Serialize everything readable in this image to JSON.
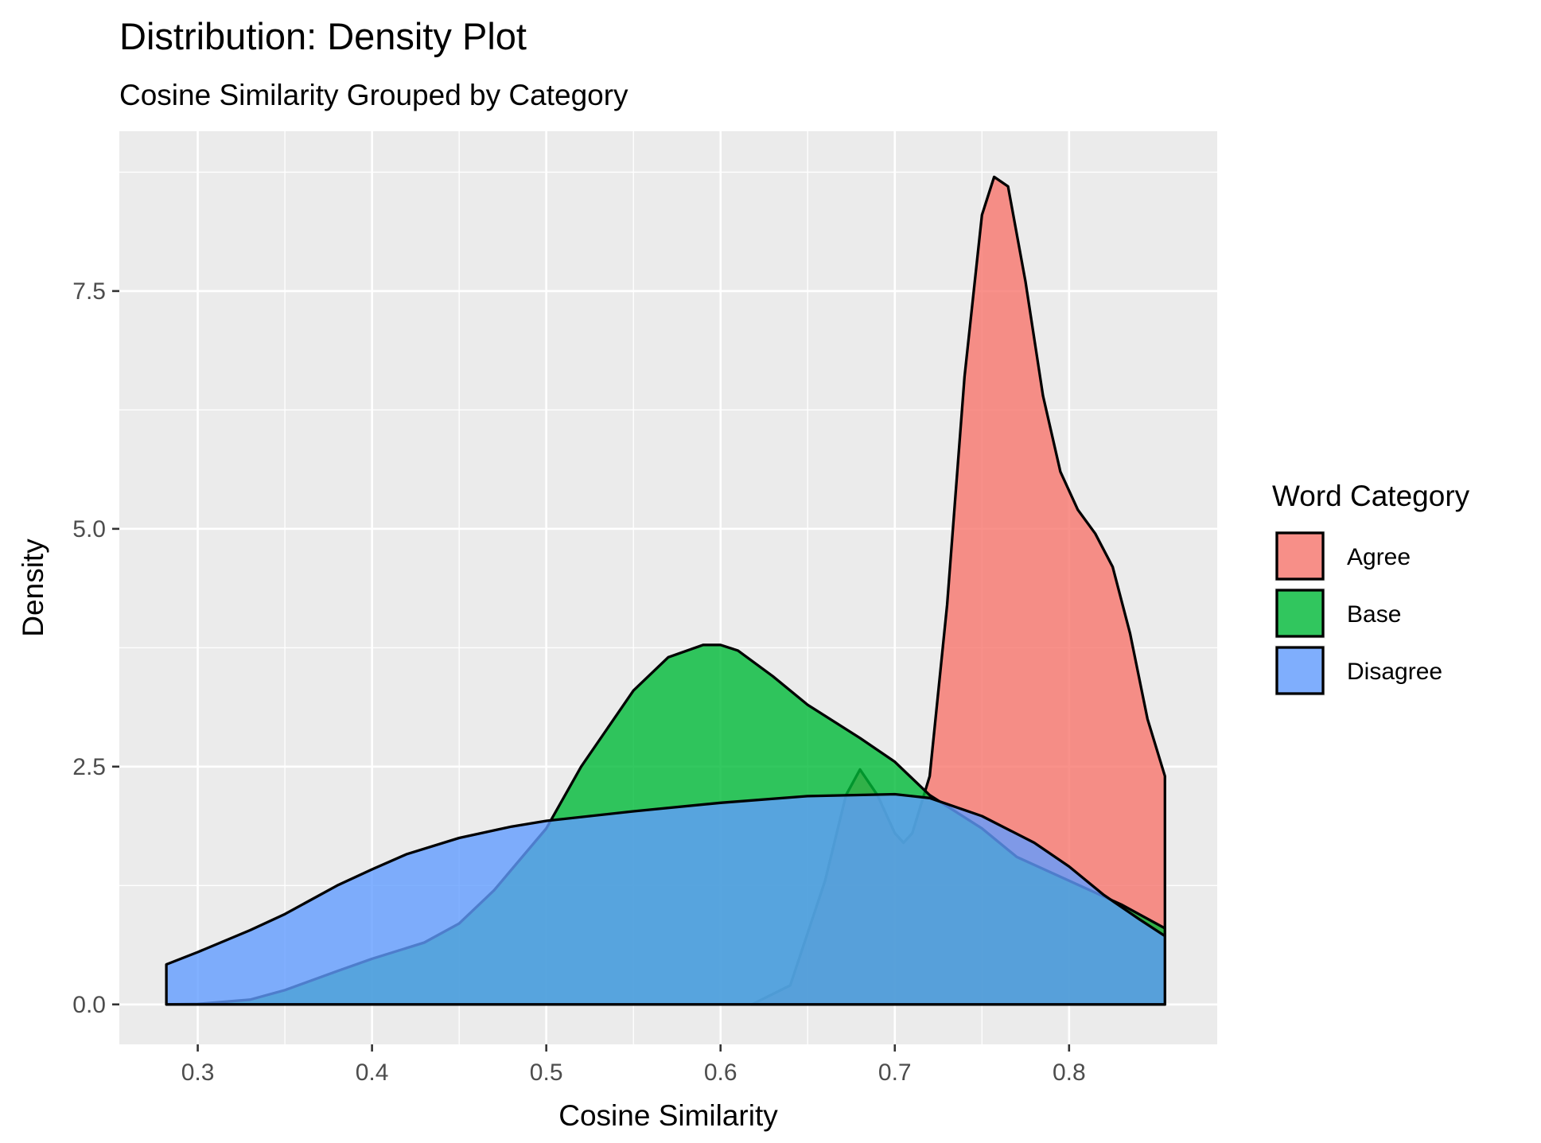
{
  "chart_data": {
    "type": "area",
    "subtype": "density",
    "title": "Distribution: Density Plot",
    "subtitle": "Cosine Similarity Grouped by Category",
    "xlabel": "Cosine Similarity",
    "ylabel": "Density",
    "xlim": [
      0.255,
      0.885
    ],
    "ylim": [
      -0.42,
      9.18
    ],
    "x_ticks": [
      0.3,
      0.4,
      0.5,
      0.6,
      0.7,
      0.8
    ],
    "x_tick_labels": [
      "0.3",
      "0.4",
      "0.5",
      "0.6",
      "0.7",
      "0.8"
    ],
    "y_ticks": [
      0,
      2.5,
      5,
      7.5
    ],
    "y_tick_labels": [
      "0.0",
      "2.5",
      "5.0",
      "7.5"
    ],
    "grid": true,
    "legend_title": "Word Category",
    "legend_position": "right",
    "series": [
      {
        "name": "Agree",
        "color": "#F8766D",
        "x": [
          0.618,
          0.64,
          0.66,
          0.672,
          0.68,
          0.69,
          0.7,
          0.705,
          0.71,
          0.72,
          0.73,
          0.74,
          0.75,
          0.757,
          0.765,
          0.775,
          0.785,
          0.795,
          0.805,
          0.815,
          0.825,
          0.835,
          0.845,
          0.855
        ],
        "y": [
          0,
          0.2,
          1.3,
          2.2,
          2.47,
          2.2,
          1.8,
          1.7,
          1.8,
          2.4,
          4.2,
          6.6,
          8.3,
          8.7,
          8.6,
          7.6,
          6.4,
          5.6,
          5.2,
          4.95,
          4.6,
          3.9,
          3.0,
          2.4
        ]
      },
      {
        "name": "Base",
        "color": "#00BA38",
        "x": [
          0.282,
          0.3,
          0.33,
          0.35,
          0.38,
          0.4,
          0.43,
          0.45,
          0.47,
          0.5,
          0.52,
          0.55,
          0.57,
          0.59,
          0.6,
          0.61,
          0.63,
          0.65,
          0.68,
          0.7,
          0.72,
          0.75,
          0.77,
          0.8,
          0.83,
          0.855
        ],
        "y": [
          0,
          0.005,
          0.05,
          0.15,
          0.35,
          0.48,
          0.65,
          0.85,
          1.2,
          1.85,
          2.5,
          3.3,
          3.65,
          3.78,
          3.78,
          3.72,
          3.45,
          3.15,
          2.8,
          2.55,
          2.2,
          1.85,
          1.55,
          1.3,
          1.05,
          0.8
        ]
      },
      {
        "name": "Disagree",
        "color": "#619CFF",
        "x": [
          0.282,
          0.3,
          0.33,
          0.35,
          0.38,
          0.4,
          0.42,
          0.45,
          0.48,
          0.5,
          0.55,
          0.6,
          0.65,
          0.7,
          0.72,
          0.75,
          0.78,
          0.8,
          0.82,
          0.84,
          0.855
        ],
        "y": [
          0.42,
          0.55,
          0.78,
          0.95,
          1.25,
          1.42,
          1.58,
          1.75,
          1.87,
          1.93,
          2.03,
          2.12,
          2.19,
          2.21,
          2.17,
          1.98,
          1.7,
          1.45,
          1.15,
          0.9,
          0.72
        ]
      }
    ]
  }
}
